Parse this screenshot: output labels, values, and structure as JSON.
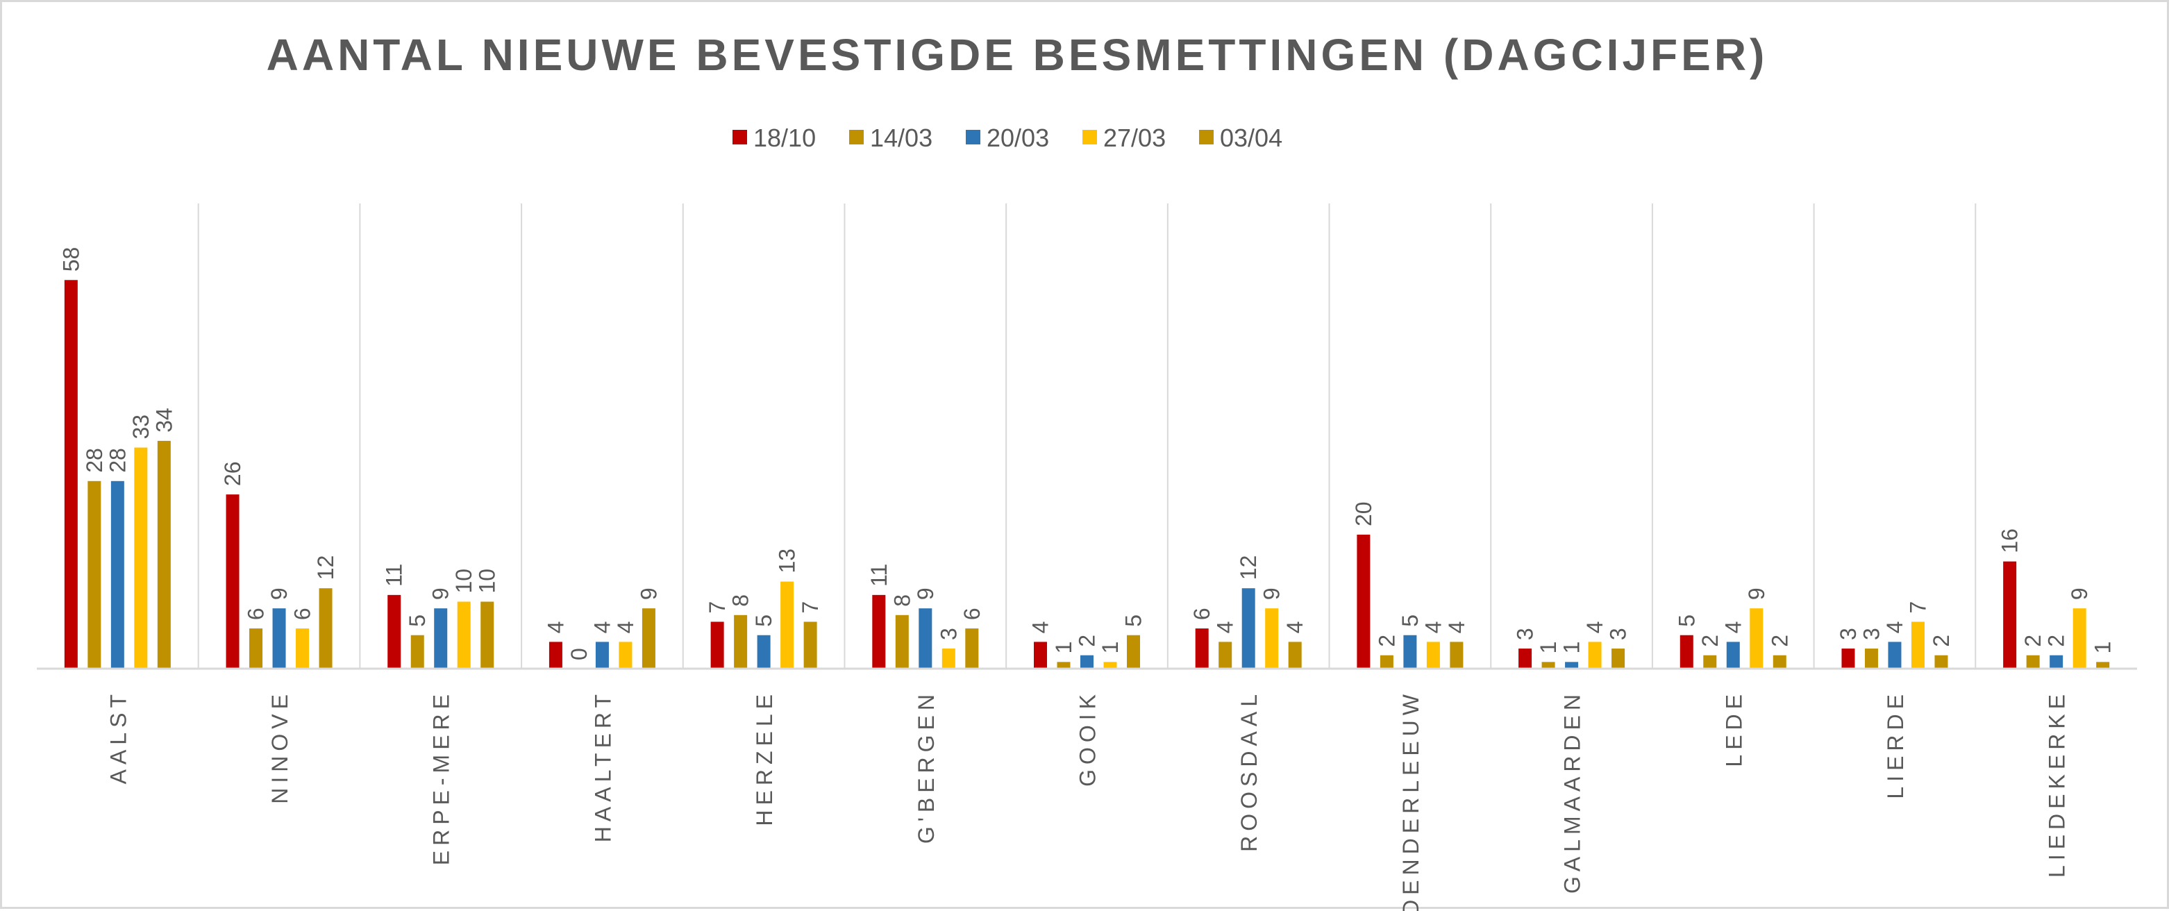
{
  "chart_data": {
    "type": "bar",
    "title": "AANTAL NIEUWE BEVESTIGDE BESMETTINGEN (DAGCIJFER)",
    "xlabel": "",
    "ylabel": "",
    "ylim": [
      0,
      70
    ],
    "grid": false,
    "legend_position": "top",
    "categories": [
      "AALST",
      "NINOVE",
      "ERPE-MERE",
      "HAALTERT",
      "HERZELE",
      "G'BERGEN",
      "GOOIK",
      "ROOSDAAL",
      "DENDERLEEUW",
      "GALMAARDEN",
      "LEDE",
      "LIERDE",
      "LIEDEKERKE"
    ],
    "series": [
      {
        "name": "18/10",
        "color": "#c00000",
        "values": [
          58,
          26,
          11,
          4,
          7,
          11,
          4,
          6,
          20,
          3,
          5,
          3,
          16
        ]
      },
      {
        "name": "14/03",
        "color": "#bf9000",
        "values": [
          28,
          6,
          5,
          0,
          8,
          8,
          1,
          4,
          2,
          1,
          2,
          3,
          2
        ]
      },
      {
        "name": "20/03",
        "color": "#2e75b6",
        "values": [
          28,
          9,
          9,
          4,
          5,
          9,
          2,
          12,
          5,
          1,
          4,
          4,
          2
        ]
      },
      {
        "name": "27/03",
        "color": "#ffc000",
        "values": [
          33,
          6,
          10,
          4,
          13,
          3,
          1,
          9,
          4,
          4,
          9,
          7,
          9
        ]
      },
      {
        "name": "03/04",
        "color": "#bf9000",
        "values": [
          34,
          12,
          10,
          9,
          7,
          6,
          5,
          4,
          4,
          3,
          2,
          2,
          1
        ]
      }
    ]
  }
}
